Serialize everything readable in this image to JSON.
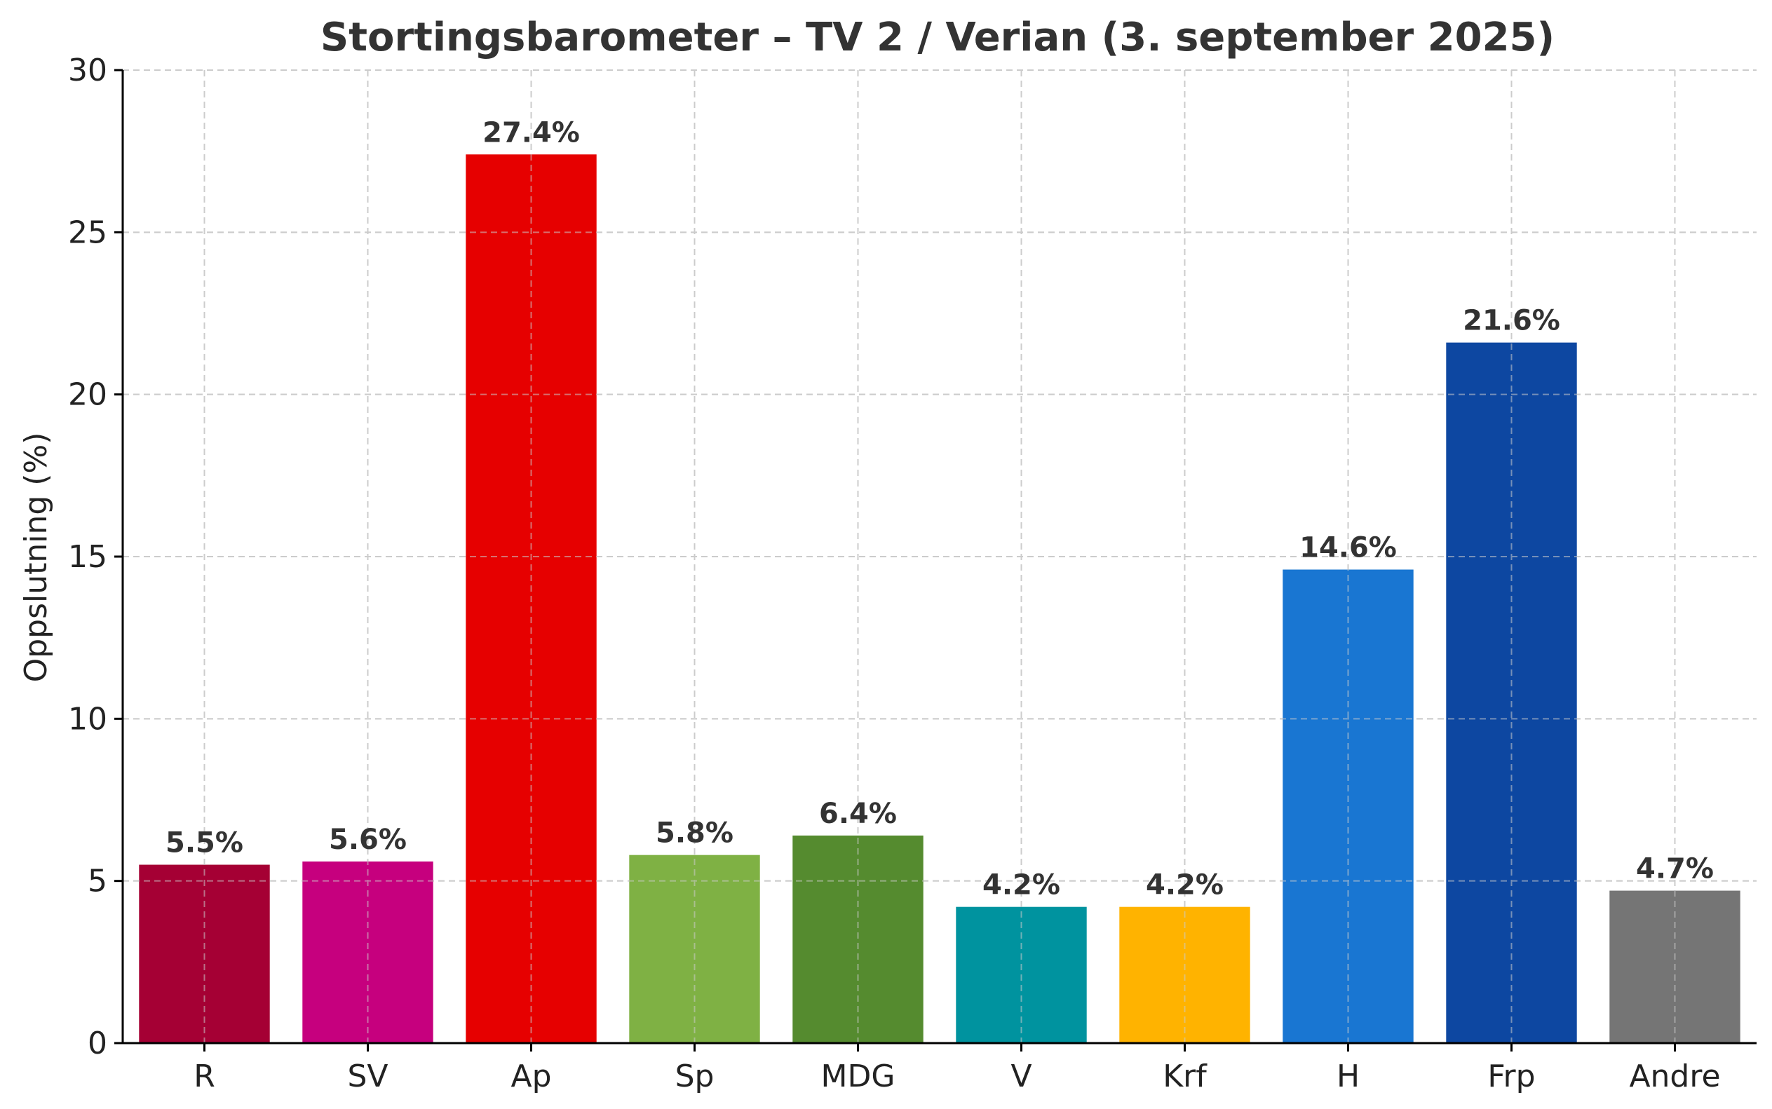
{
  "chart_data": {
    "type": "bar",
    "title": "Stortingsbarometer – TV 2 / Verian (3. september 2025)",
    "xlabel": "",
    "ylabel": "Oppslutning (%)",
    "ylim": [
      0,
      30
    ],
    "yticks": [
      0,
      5,
      10,
      15,
      20,
      25,
      30
    ],
    "grid": true,
    "categories": [
      "R",
      "SV",
      "Ap",
      "Sp",
      "MDG",
      "V",
      "Krf",
      "H",
      "Frp",
      "Andre"
    ],
    "values": [
      5.5,
      5.6,
      27.4,
      5.8,
      6.4,
      4.2,
      4.2,
      14.6,
      21.6,
      4.7
    ],
    "data_labels": [
      "5.5%",
      "5.6%",
      "27.4%",
      "5.8%",
      "6.4%",
      "4.2%",
      "4.2%",
      "14.6%",
      "21.6%",
      "4.7%"
    ],
    "colors": [
      "#A50034",
      "#C6007E",
      "#E60000",
      "#7FB144",
      "#558B2F",
      "#00939F",
      "#FFB300",
      "#1976D2",
      "#0D47A1",
      "#757575"
    ]
  }
}
